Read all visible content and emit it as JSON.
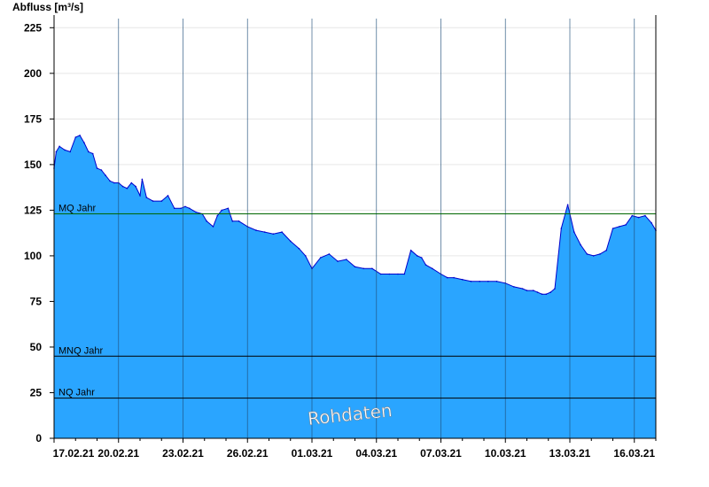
{
  "chart_data": {
    "type": "area",
    "ylabel": "Abfluss [m³/s]",
    "ylim": [
      0,
      230
    ],
    "yticks": [
      0,
      25,
      50,
      75,
      100,
      125,
      150,
      175,
      200,
      225
    ],
    "xlim": [
      0,
      28
    ],
    "xtick_positions": [
      0,
      3,
      6,
      9,
      12,
      15,
      18,
      21,
      24,
      27
    ],
    "xtick_labels": [
      "17.02.21",
      "20.02.21",
      "23.02.21",
      "26.02.21",
      "01.03.21",
      "04.03.21",
      "07.03.21",
      "10.03.21",
      "13.03.21",
      "16.03.21"
    ],
    "grid": true,
    "series": [
      {
        "x": [
          0,
          0.1,
          0.25,
          0.5,
          0.75,
          1.0,
          1.2,
          1.4,
          1.6,
          1.8,
          2.0,
          2.2,
          2.4,
          2.6,
          2.8,
          3.0,
          3.2,
          3.4,
          3.6,
          3.8,
          4.0,
          4.1,
          4.3,
          4.6,
          5.0,
          5.3,
          5.6,
          5.9,
          6.1,
          6.3,
          6.6,
          6.9,
          7.1,
          7.4,
          7.6,
          7.8,
          8.1,
          8.3,
          8.6,
          9.0,
          9.4,
          9.8,
          10.2,
          10.6,
          11.0,
          11.4,
          11.7,
          12.0,
          12.4,
          12.8,
          13.2,
          13.6,
          14.0,
          14.4,
          14.8,
          15.2,
          15.6,
          16.0,
          16.3,
          16.6,
          16.9,
          17.1,
          17.3,
          17.6,
          18.0,
          18.3,
          18.6,
          19.0,
          19.4,
          19.8,
          20.2,
          20.6,
          21.0,
          21.4,
          21.8,
          22.0,
          22.3,
          22.5,
          22.7,
          22.9,
          23.1,
          23.3,
          23.6,
          23.9,
          24.2,
          24.5,
          24.8,
          25.1,
          25.4,
          25.7,
          26.0,
          26.3,
          26.6,
          26.9,
          27.2,
          27.5,
          27.8,
          28.0
        ],
        "y": [
          148,
          157,
          160,
          158,
          157,
          165,
          166,
          162,
          157,
          156,
          148,
          147,
          144,
          141,
          140,
          140,
          138,
          137,
          140,
          138,
          133,
          142,
          132,
          130,
          130,
          133,
          126,
          126,
          127,
          126,
          124,
          123,
          119,
          116,
          122,
          125,
          126,
          119,
          119,
          116,
          114,
          113,
          112,
          113,
          108,
          104,
          100,
          93,
          99,
          101,
          97,
          98,
          94,
          93,
          93,
          90,
          90,
          90,
          90,
          103,
          100,
          99,
          95,
          93,
          90,
          88,
          88,
          87,
          86,
          86,
          86,
          86,
          85,
          83,
          82,
          81,
          81,
          80,
          79,
          79,
          80,
          82,
          115,
          128,
          113,
          106,
          101,
          100,
          101,
          103,
          115,
          116,
          117,
          122,
          121,
          122,
          118,
          114
        ]
      }
    ],
    "ref_lines": [
      {
        "label": "MQ Jahr",
        "value": 123
      },
      {
        "label": "MNQ Jahr",
        "value": 45
      },
      {
        "label": "NQ Jahr",
        "value": 22
      }
    ],
    "watermark": "Rohdaten",
    "colors": {
      "fill": "#2aa5ff",
      "line": "#0000cc",
      "mq_line": "#006600",
      "ref_line": "#000000",
      "grid": "#e6e6e6",
      "vgrid": "#1f4f7a"
    }
  }
}
